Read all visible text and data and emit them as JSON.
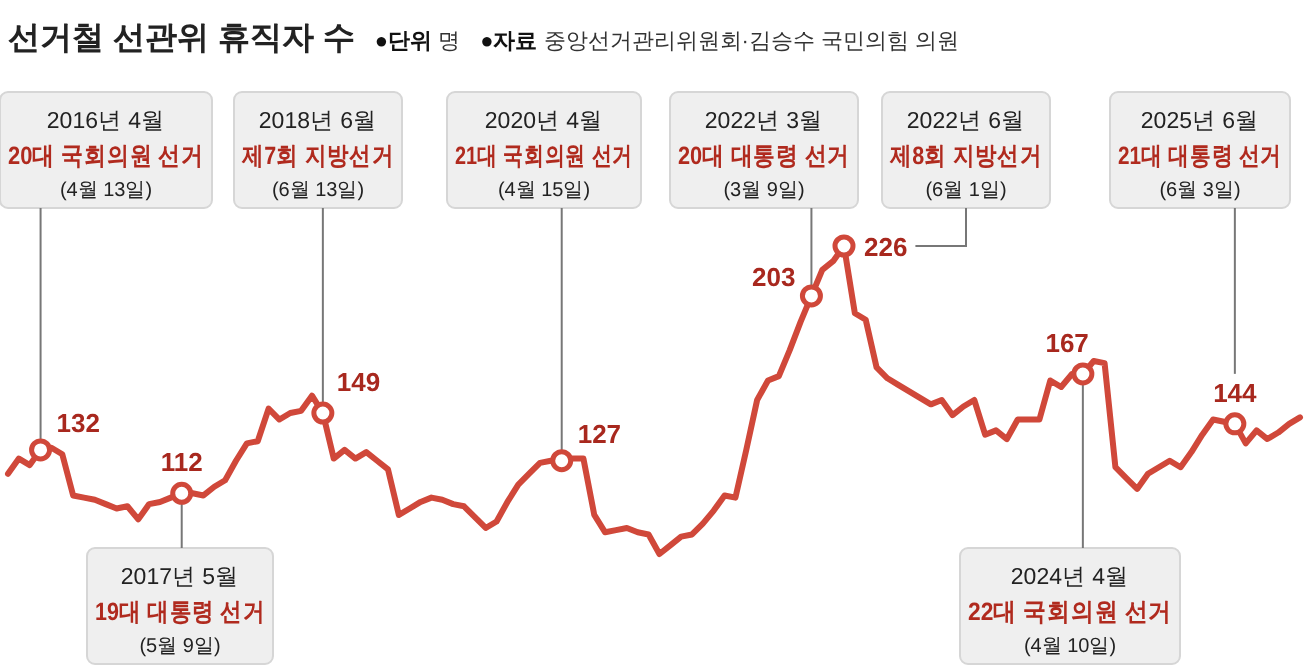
{
  "chart_data": {
    "type": "line",
    "title": "선거철 선관위 휴직자 수",
    "tick_labels": false,
    "categories": [
      null,
      null,
      null,
      null,
      null,
      null,
      null,
      null,
      null,
      null,
      null,
      null,
      null,
      null,
      null,
      null,
      null,
      null,
      null,
      null,
      null,
      null,
      null,
      null,
      null,
      null,
      null,
      null,
      null,
      null,
      null,
      null,
      null,
      null,
      null,
      null,
      null,
      null,
      null,
      null,
      null,
      null,
      null,
      null,
      null,
      null,
      null,
      null,
      null,
      null,
      null,
      null,
      null,
      null,
      null,
      null,
      null,
      null,
      null,
      null,
      null,
      null,
      null,
      null,
      null,
      null,
      null,
      null,
      null,
      null,
      null,
      null,
      null,
      null,
      null,
      null,
      null,
      null,
      null,
      null,
      null,
      null,
      null,
      null,
      null,
      null,
      null,
      null,
      null,
      null,
      null,
      null,
      null,
      null,
      null,
      null,
      null,
      null,
      null,
      null,
      null,
      null,
      null,
      null,
      null,
      null,
      null,
      null,
      null,
      null,
      null,
      null,
      null,
      null,
      null,
      null,
      null,
      null,
      null,
      null
    ],
    "series": [
      {
        "color": "#d0483a",
        "values": [
          121,
          128,
          125,
          132,
          133,
          130,
          111,
          110,
          109,
          107,
          105,
          106,
          100,
          107,
          108,
          110,
          112,
          112,
          111,
          115,
          118,
          127,
          135,
          136,
          151,
          146,
          149,
          150,
          157,
          149,
          128,
          132,
          128,
          131,
          127,
          123,
          102,
          105,
          108,
          110,
          109,
          107,
          106,
          101,
          96,
          99,
          108,
          116,
          121,
          126,
          127,
          127,
          128,
          128,
          102,
          94,
          95,
          96,
          94,
          93,
          84,
          88,
          92,
          93,
          98,
          104,
          111,
          110,
          132,
          155,
          164,
          166,
          178,
          191,
          203,
          215,
          219,
          226,
          195,
          192,
          170,
          165,
          162,
          159,
          156,
          153,
          155,
          148,
          152,
          155,
          139,
          141,
          137,
          146,
          146,
          146,
          164,
          161,
          167,
          167,
          173,
          172,
          124,
          119,
          114,
          121,
          124,
          127,
          124,
          131,
          139,
          146,
          145,
          144,
          135,
          141,
          137,
          140,
          144,
          147
        ],
        "value_labels": [
          null,
          null,
          null,
          "132",
          null,
          null,
          null,
          null,
          null,
          null,
          null,
          null,
          null,
          null,
          null,
          null,
          "112",
          null,
          null,
          null,
          null,
          null,
          null,
          null,
          null,
          null,
          null,
          null,
          null,
          "149",
          null,
          null,
          null,
          null,
          null,
          null,
          null,
          null,
          null,
          null,
          null,
          null,
          null,
          null,
          null,
          null,
          null,
          null,
          null,
          null,
          null,
          "127",
          null,
          null,
          null,
          null,
          null,
          null,
          null,
          null,
          null,
          null,
          null,
          null,
          null,
          null,
          null,
          null,
          null,
          null,
          null,
          null,
          null,
          null,
          "203",
          null,
          null,
          "226",
          null,
          null,
          null,
          null,
          null,
          null,
          null,
          null,
          null,
          null,
          null,
          null,
          null,
          null,
          null,
          null,
          null,
          null,
          null,
          null,
          null,
          "167",
          null,
          null,
          null,
          null,
          null,
          null,
          null,
          null,
          null,
          null,
          null,
          null,
          null,
          "144",
          null,
          null,
          null,
          null,
          null,
          null
        ]
      }
    ],
    "annotations": [
      "●단위 명",
      "●자료 중앙선거관리위원회·김승수 국민의힘 의원",
      "2016년 4월\n20대 국회의원 선거\n(4월 13일)",
      "2017년 5월\n19대 대통령 선거\n(5월 9일)",
      "2018년 6월\n제7회 지방선거\n(6월 13일)",
      "2020년 4월\n21대 국회의원 선거\n(4월 15일)",
      "2022년 3월\n20대 대통령 선거\n(3월 9일)",
      "2022년 6월\n제8회 지방선거\n(6월 1일)",
      "2024년 4월\n22대 국회의원 선거\n(4월 10일)",
      "2025년 6월\n21대 대통령 선거\n(6월 3일)"
    ]
  }
}
